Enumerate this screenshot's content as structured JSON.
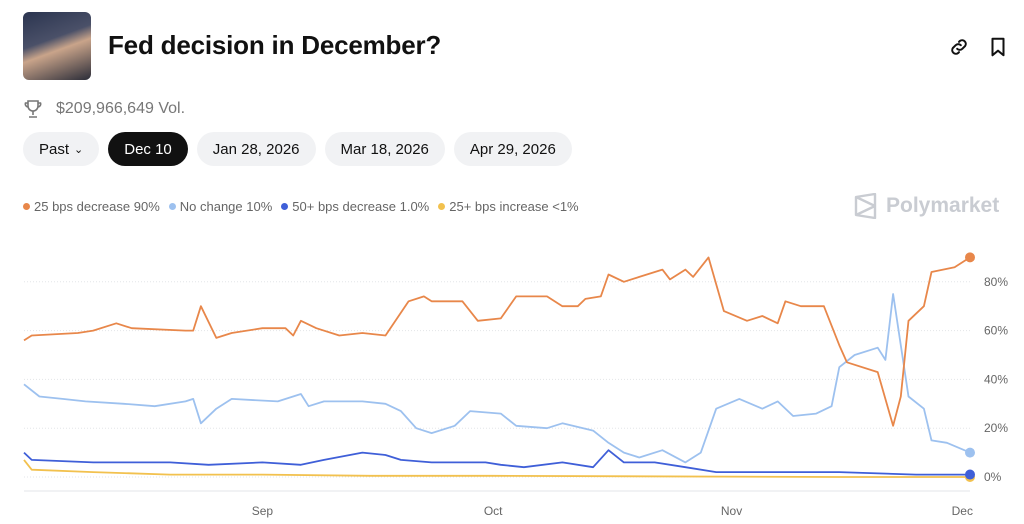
{
  "header": {
    "title": "Fed decision in December?",
    "volume": "$209,966,649 Vol.",
    "icons": [
      "link-icon",
      "bookmark-icon",
      "trophy-icon"
    ]
  },
  "tabs": [
    {
      "label": "Past",
      "active": false
    },
    {
      "label": "Dec 10",
      "active": true
    },
    {
      "label": "Jan 28, 2026",
      "active": false
    },
    {
      "label": "Mar 18, 2026",
      "active": false
    },
    {
      "label": "Apr 29, 2026",
      "active": false
    }
  ],
  "brand": "Polymarket",
  "chart_data": {
    "type": "line",
    "xlim": [
      "2025-08-01",
      "2025-12-02"
    ],
    "ylim": [
      0,
      100
    ],
    "grid": true,
    "legend_placement": "top-left",
    "x_ticks": [
      {
        "date": "2025-09-01",
        "label": "Sep"
      },
      {
        "date": "2025-10-01",
        "label": "Oct"
      },
      {
        "date": "2025-11-01",
        "label": "Nov"
      },
      {
        "date": "2025-12-01",
        "label": "Dec"
      }
    ],
    "y_ticks": [
      {
        "value": 0,
        "label": "0%"
      },
      {
        "value": 20,
        "label": "20%"
      },
      {
        "value": 40,
        "label": "40%"
      },
      {
        "value": 60,
        "label": "60%"
      },
      {
        "value": 80,
        "label": "80%"
      }
    ],
    "series": [
      {
        "name": "25 bps decrease",
        "legend": "25 bps decrease 90%",
        "color": "#E8874A",
        "points": [
          [
            "2025-08-01",
            56
          ],
          [
            "2025-08-02",
            58
          ],
          [
            "2025-08-08",
            59
          ],
          [
            "2025-08-10",
            60
          ],
          [
            "2025-08-13",
            63
          ],
          [
            "2025-08-15",
            61
          ],
          [
            "2025-08-22",
            60
          ],
          [
            "2025-08-23",
            60
          ],
          [
            "2025-08-24",
            70
          ],
          [
            "2025-08-26",
            57
          ],
          [
            "2025-08-28",
            59
          ],
          [
            "2025-09-01",
            61
          ],
          [
            "2025-09-04",
            61
          ],
          [
            "2025-09-05",
            58
          ],
          [
            "2025-09-06",
            64
          ],
          [
            "2025-09-08",
            61
          ],
          [
            "2025-09-11",
            58
          ],
          [
            "2025-09-14",
            59
          ],
          [
            "2025-09-17",
            58
          ],
          [
            "2025-09-20",
            72
          ],
          [
            "2025-09-22",
            74
          ],
          [
            "2025-09-23",
            72
          ],
          [
            "2025-09-27",
            72
          ],
          [
            "2025-09-29",
            64
          ],
          [
            "2025-10-02",
            65
          ],
          [
            "2025-10-04",
            74
          ],
          [
            "2025-10-08",
            74
          ],
          [
            "2025-10-10",
            70
          ],
          [
            "2025-10-12",
            70
          ],
          [
            "2025-10-13",
            73
          ],
          [
            "2025-10-15",
            74
          ],
          [
            "2025-10-16",
            83
          ],
          [
            "2025-10-18",
            80
          ],
          [
            "2025-10-20",
            82
          ],
          [
            "2025-10-23",
            85
          ],
          [
            "2025-10-24",
            81
          ],
          [
            "2025-10-26",
            85
          ],
          [
            "2025-10-27",
            82
          ],
          [
            "2025-10-29",
            90
          ],
          [
            "2025-10-31",
            68
          ],
          [
            "2025-11-03",
            64
          ],
          [
            "2025-11-05",
            66
          ],
          [
            "2025-11-07",
            63
          ],
          [
            "2025-11-08",
            72
          ],
          [
            "2025-11-10",
            70
          ],
          [
            "2025-11-13",
            70
          ],
          [
            "2025-11-14",
            62
          ],
          [
            "2025-11-15",
            54
          ],
          [
            "2025-11-16",
            47
          ],
          [
            "2025-11-20",
            43
          ],
          [
            "2025-11-22",
            21
          ],
          [
            "2025-11-23",
            33
          ],
          [
            "2025-11-24",
            64
          ],
          [
            "2025-11-26",
            70
          ],
          [
            "2025-11-27",
            84
          ],
          [
            "2025-11-30",
            86
          ],
          [
            "2025-12-02",
            90
          ]
        ]
      },
      {
        "name": "No change",
        "legend": "No change 10%",
        "color": "#9DC1EF",
        "points": [
          [
            "2025-08-01",
            38
          ],
          [
            "2025-08-03",
            33
          ],
          [
            "2025-08-06",
            32
          ],
          [
            "2025-08-09",
            31
          ],
          [
            "2025-08-14",
            30
          ],
          [
            "2025-08-18",
            29
          ],
          [
            "2025-08-22",
            31
          ],
          [
            "2025-08-23",
            32
          ],
          [
            "2025-08-24",
            22
          ],
          [
            "2025-08-26",
            28
          ],
          [
            "2025-08-28",
            32
          ],
          [
            "2025-09-03",
            31
          ],
          [
            "2025-09-06",
            34
          ],
          [
            "2025-09-07",
            29
          ],
          [
            "2025-09-09",
            31
          ],
          [
            "2025-09-14",
            31
          ],
          [
            "2025-09-17",
            30
          ],
          [
            "2025-09-19",
            27
          ],
          [
            "2025-09-21",
            20
          ],
          [
            "2025-09-23",
            18
          ],
          [
            "2025-09-26",
            21
          ],
          [
            "2025-09-28",
            27
          ],
          [
            "2025-10-02",
            26
          ],
          [
            "2025-10-04",
            21
          ],
          [
            "2025-10-08",
            20
          ],
          [
            "2025-10-10",
            22
          ],
          [
            "2025-10-14",
            19
          ],
          [
            "2025-10-16",
            14
          ],
          [
            "2025-10-18",
            10
          ],
          [
            "2025-10-20",
            8
          ],
          [
            "2025-10-23",
            11
          ],
          [
            "2025-10-26",
            6
          ],
          [
            "2025-10-28",
            10
          ],
          [
            "2025-10-30",
            28
          ],
          [
            "2025-11-02",
            32
          ],
          [
            "2025-11-05",
            28
          ],
          [
            "2025-11-07",
            31
          ],
          [
            "2025-11-09",
            25
          ],
          [
            "2025-11-12",
            26
          ],
          [
            "2025-11-14",
            29
          ],
          [
            "2025-11-15",
            45
          ],
          [
            "2025-11-17",
            50
          ],
          [
            "2025-11-20",
            53
          ],
          [
            "2025-11-21",
            48
          ],
          [
            "2025-11-22",
            75
          ],
          [
            "2025-11-24",
            33
          ],
          [
            "2025-11-26",
            28
          ],
          [
            "2025-11-27",
            15
          ],
          [
            "2025-11-29",
            14
          ],
          [
            "2025-12-02",
            10
          ]
        ]
      },
      {
        "name": "50+ bps decrease",
        "legend": "50+ bps decrease 1.0%",
        "color": "#3F5FD8",
        "points": [
          [
            "2025-08-01",
            10
          ],
          [
            "2025-08-02",
            7
          ],
          [
            "2025-08-10",
            6
          ],
          [
            "2025-08-20",
            6
          ],
          [
            "2025-08-25",
            5
          ],
          [
            "2025-09-01",
            6
          ],
          [
            "2025-09-06",
            5
          ],
          [
            "2025-09-09",
            7
          ],
          [
            "2025-09-14",
            10
          ],
          [
            "2025-09-17",
            9
          ],
          [
            "2025-09-19",
            7
          ],
          [
            "2025-09-23",
            6
          ],
          [
            "2025-09-30",
            6
          ],
          [
            "2025-10-02",
            5
          ],
          [
            "2025-10-05",
            4
          ],
          [
            "2025-10-10",
            6
          ],
          [
            "2025-10-14",
            4
          ],
          [
            "2025-10-16",
            11
          ],
          [
            "2025-10-18",
            6
          ],
          [
            "2025-10-22",
            6
          ],
          [
            "2025-10-26",
            4
          ],
          [
            "2025-10-30",
            2
          ],
          [
            "2025-11-05",
            2
          ],
          [
            "2025-11-15",
            2
          ],
          [
            "2025-11-25",
            1
          ],
          [
            "2025-12-02",
            1
          ]
        ]
      },
      {
        "name": "25+ bps increase",
        "legend": "25+ bps increase <1%",
        "color": "#F2C14E",
        "points": [
          [
            "2025-08-01",
            7
          ],
          [
            "2025-08-02",
            3
          ],
          [
            "2025-08-10",
            2
          ],
          [
            "2025-08-20",
            1
          ],
          [
            "2025-09-01",
            1
          ],
          [
            "2025-09-15",
            0.5
          ],
          [
            "2025-10-01",
            0.5
          ],
          [
            "2025-11-15",
            0
          ],
          [
            "2025-12-02",
            0
          ]
        ]
      }
    ]
  }
}
